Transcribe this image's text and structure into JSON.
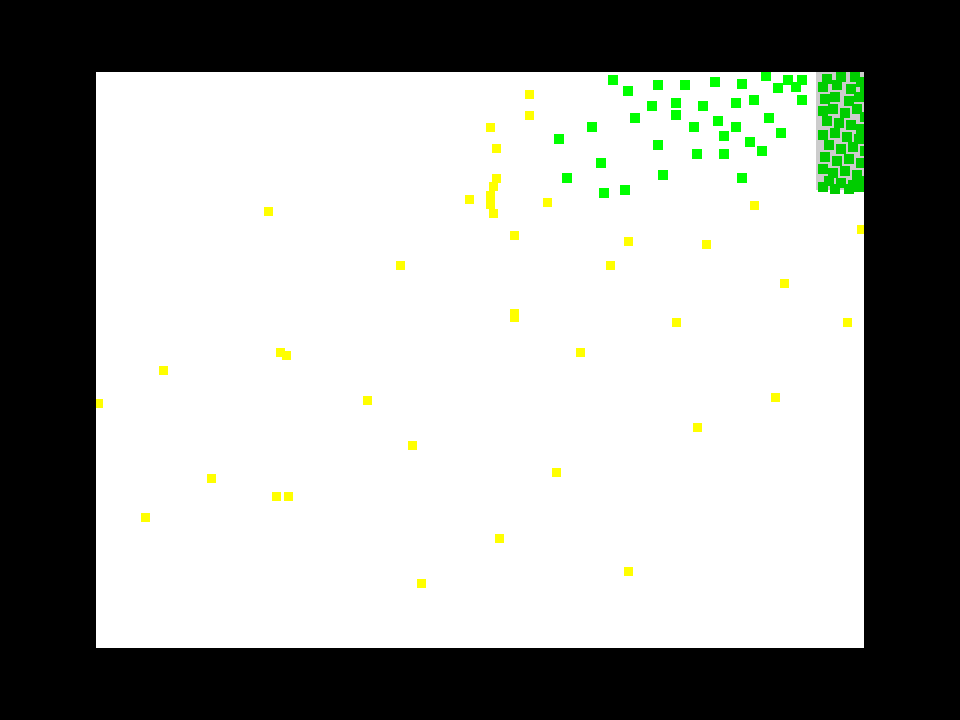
{
  "game": {
    "colors": {
      "background": "#000000",
      "field": "#ffffff",
      "zone": "#cccccc",
      "yellow_particle": "#ffff00",
      "green_particle": "#00ff00",
      "zone_particle": "#00cc00"
    }
  }
}
